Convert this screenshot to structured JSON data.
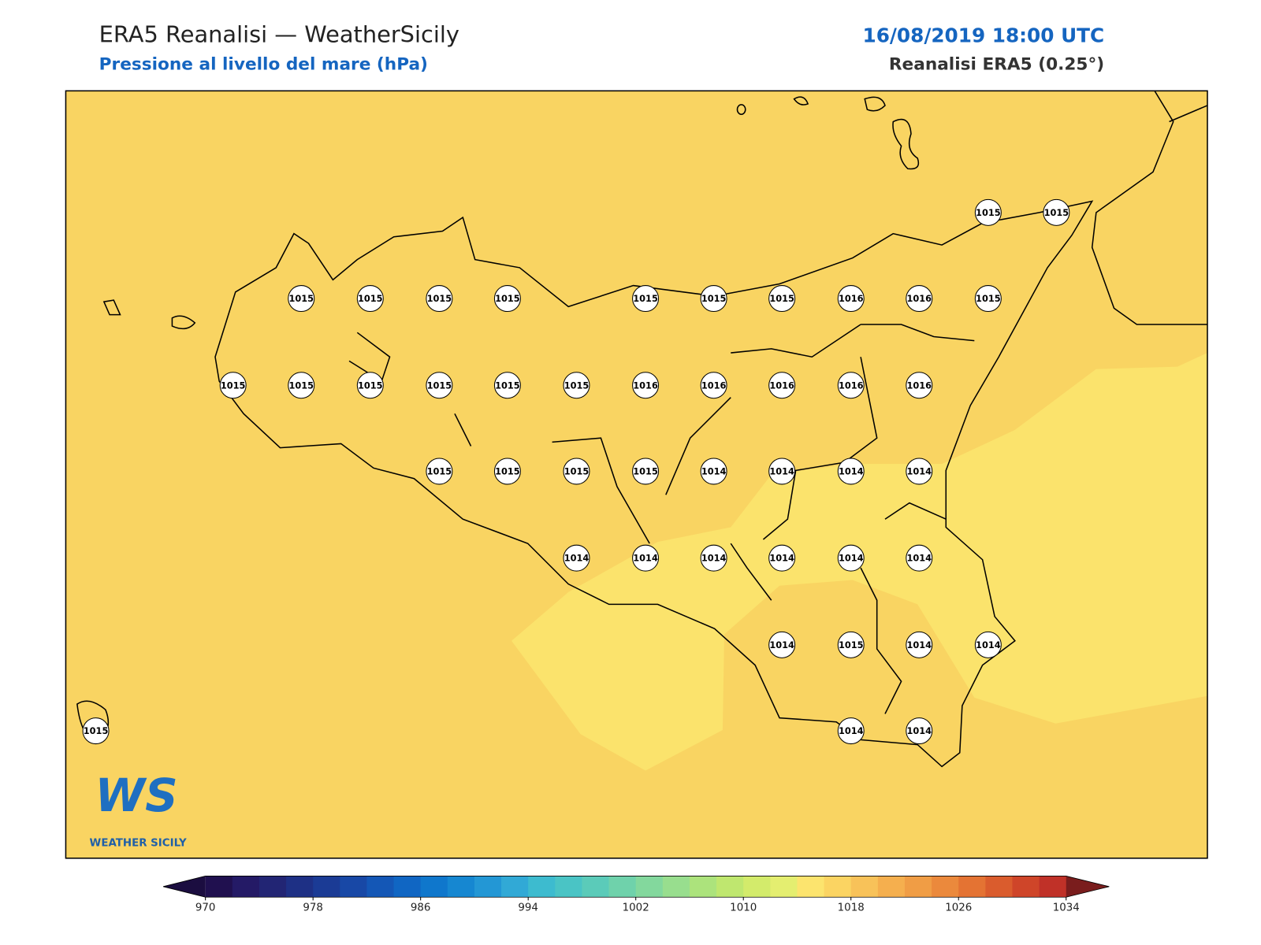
{
  "header": {
    "title": "ERA5 Reanalisi — WeatherSicily",
    "subtitle": "Pressione al livello del mare (hPa)",
    "datetime": "16/08/2019 18:00 UTC",
    "source": "Reanalisi ERA5 (0.25°)"
  },
  "map": {
    "stations": [
      1015,
      1015,
      1015,
      1015,
      1015,
      1015,
      1015,
      1015,
      1015,
      1016,
      1016,
      1015,
      1015,
      1015,
      1015,
      1015,
      1015,
      1015,
      1016,
      1016,
      1016,
      1016,
      1016,
      1015,
      1015,
      1015,
      1015,
      1014,
      1014,
      1014,
      1014,
      1014,
      1014,
      1014,
      1014,
      1014,
      1014,
      1014,
      1015,
      1014,
      1014,
      1015,
      1014,
      1014
    ]
  },
  "logo": {
    "mark": "WS",
    "text": "WEATHER SICILY"
  },
  "colorbar": {
    "range": [
      970,
      1034
    ],
    "step": 2,
    "ticks": [
      970,
      978,
      986,
      994,
      1002,
      1010,
      1018,
      1026,
      1034
    ],
    "colors": [
      "#20104f",
      "#241a66",
      "#222574",
      "#1e3085",
      "#1b3b95",
      "#1848a6",
      "#1457b6",
      "#1066c3",
      "#0f77cc",
      "#1687d1",
      "#2397d5",
      "#31a9d6",
      "#3dbbcf",
      "#4ac4c5",
      "#5bcbb9",
      "#6fd2ab",
      "#83d89d",
      "#98de8e",
      "#ace37c",
      "#bfe76f",
      "#d3eb6b",
      "#e4ee70",
      "#fce46e",
      "#fbd462",
      "#f8c259",
      "#f5af4e",
      "#f09d45",
      "#eb893c",
      "#e47333",
      "#da5c2d",
      "#cf4529",
      "#c03128"
    ],
    "under": "#1b0d40",
    "over": "#7a1d1d"
  }
}
